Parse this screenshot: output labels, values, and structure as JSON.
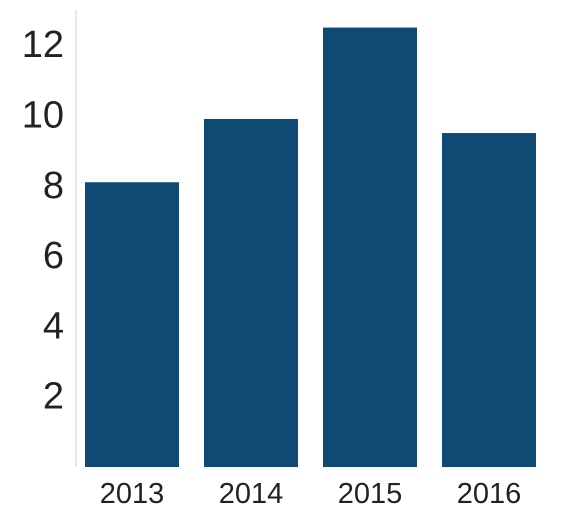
{
  "chart_data": {
    "type": "bar",
    "categories": [
      "2013",
      "2014",
      "2015",
      "2016"
    ],
    "values": [
      8.1,
      9.9,
      12.5,
      9.5
    ],
    "ylim": [
      0,
      13
    ],
    "yticks": [
      2,
      4,
      6,
      8,
      10,
      12
    ],
    "grid": false,
    "legend": "none",
    "title": "",
    "xlabel": "",
    "ylabel": "",
    "colors": {
      "bar": "#0e4a73",
      "axis": "#cfcfe6",
      "text": "#222222"
    }
  }
}
